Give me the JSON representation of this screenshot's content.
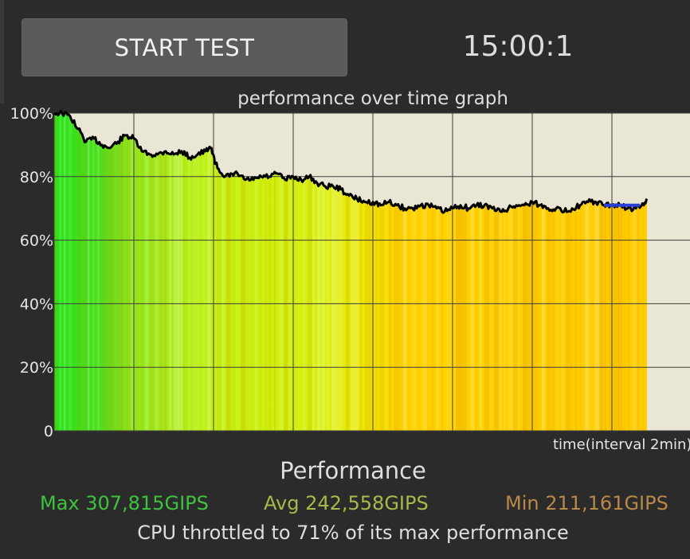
{
  "header": {
    "start_button_label": "START TEST",
    "timer": "15:00:1"
  },
  "chart_data": {
    "type": "area",
    "title": "performance over time graph",
    "xlabel": "time(interval 2min)",
    "ylabel": "",
    "ylim": [
      0,
      100
    ],
    "y_ticks": [
      "0",
      "20%",
      "40%",
      "60%",
      "80%",
      "100%"
    ],
    "x_range_minutes": [
      0,
      16
    ],
    "grid": true,
    "background_color": "#e9e6d5",
    "line_color": "#000000",
    "marker_color": "#2a3fd6",
    "marker": {
      "x_start": 13.8,
      "x_end": 14.7,
      "y": 71
    },
    "series": [
      {
        "x": [
          0,
          0.2,
          0.4,
          0.6,
          0.8,
          1.0,
          1.2,
          1.4,
          1.6,
          1.8,
          2.0,
          2.2,
          2.4,
          2.6,
          2.8,
          3.0,
          3.2,
          3.4,
          3.6,
          3.8,
          3.95,
          4.05,
          4.2,
          4.4,
          4.6,
          4.8,
          5.0,
          5.2,
          5.4,
          5.6,
          5.8,
          6.0,
          6.2,
          6.4,
          6.6,
          6.8,
          7.0,
          7.2,
          7.4,
          7.6,
          7.8,
          8.0,
          8.2,
          8.4,
          8.6,
          8.8,
          9.0,
          9.2,
          9.4,
          9.6,
          9.8,
          10.0,
          10.2,
          10.4,
          10.6,
          10.8,
          11.0,
          11.2,
          11.4,
          11.6,
          11.8,
          12.0,
          12.2,
          12.4,
          12.6,
          12.8,
          13.0,
          13.2,
          13.4,
          13.6,
          13.8,
          14.0,
          14.2,
          14.4,
          14.6,
          14.8,
          14.88
        ],
        "values": [
          100,
          100,
          99,
          95,
          91,
          92,
          90,
          89,
          91,
          93,
          92,
          88,
          87,
          87,
          88,
          87,
          88,
          86,
          87,
          88,
          89,
          84,
          81,
          80,
          81,
          79,
          79,
          80,
          80,
          81,
          79,
          80,
          79,
          80,
          78,
          77,
          77,
          76,
          74,
          73,
          72,
          72,
          71,
          72,
          71,
          70,
          70,
          71,
          71,
          70,
          69,
          70,
          71,
          70,
          71,
          71,
          70,
          69,
          70,
          71,
          71,
          72,
          71,
          70,
          70,
          69,
          70,
          71,
          72,
          72,
          71,
          71,
          71,
          70,
          70,
          71,
          73
        ]
      }
    ]
  },
  "performance": {
    "title": "Performance",
    "max": "Max 307,815GIPS",
    "avg": "Avg 242,558GIPS",
    "min": "Min 211,161GIPS",
    "max_color": "#3ec33e",
    "avg_color": "#a8b84a",
    "min_color": "#b88848",
    "summary": "CPU throttled to 71% of its max performance"
  }
}
